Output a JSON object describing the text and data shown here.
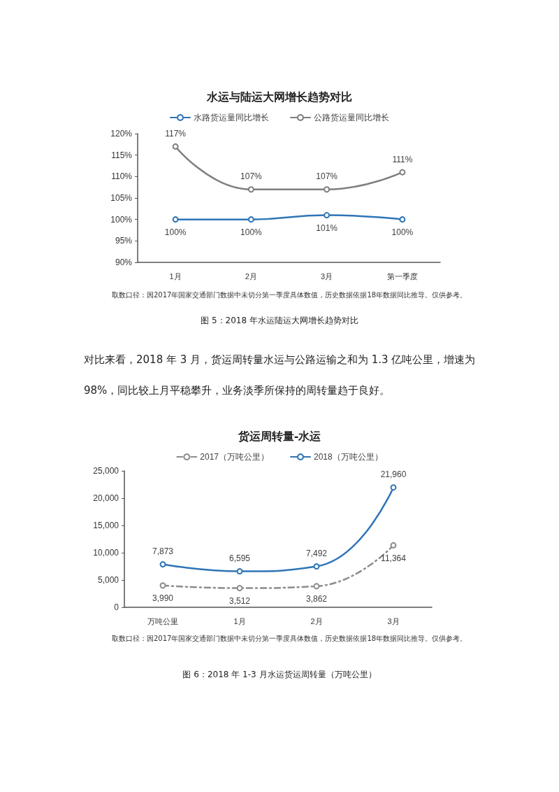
{
  "chart_data": [
    {
      "type": "line",
      "title": "水运与陆运大网增长趋势对比",
      "categories": [
        "1月",
        "2月",
        "3月",
        "第一季度"
      ],
      "series": [
        {
          "name": "水路货运量同比增长",
          "color": "#2e75b6",
          "values": [
            100,
            100,
            101,
            100
          ],
          "value_labels": [
            "100%",
            "100%",
            "101%",
            "100%"
          ]
        },
        {
          "name": "公路货运量同比增长",
          "color": "#7f7f7f",
          "values": [
            117,
            107,
            107,
            111
          ],
          "value_labels": [
            "117%",
            "107%",
            "107%",
            "111%"
          ]
        }
      ],
      "ylim": [
        90,
        120
      ],
      "yticks": [
        {
          "value": 90,
          "label": "90%"
        },
        {
          "value": 95,
          "label": "95%"
        },
        {
          "value": 100,
          "label": "100%"
        },
        {
          "value": 105,
          "label": "105%"
        },
        {
          "value": 110,
          "label": "110%"
        },
        {
          "value": 115,
          "label": "115%"
        },
        {
          "value": 120,
          "label": "120%"
        }
      ],
      "grid": false,
      "legend": "top",
      "marker": "circle",
      "line_style": "solid",
      "annotations": [
        "取数口径：因2017年国家交通部门数据中未切分第一季度具体数值，历史数据依据18年数据同比推导。仅供参考。",
        "图 5：2018 年水运陆运大网增长趋势对比",
        "对比来看，2018 年 3 月，货运周转量水运与公路运输之和为 1.3 亿吨公里，增速为 98%，同比较上月平稳攀升，业务淡季所保持的周转量趋于良好。"
      ]
    },
    {
      "type": "line",
      "title": "货运周转量-水运",
      "categories": [
        "万吨公里",
        "1月",
        "2月",
        "3月"
      ],
      "series": [
        {
          "name": "2017（万吨公里）",
          "color": "#8c8c8c",
          "line_style": "dashed",
          "values": [
            3990,
            3512,
            3862,
            11364
          ],
          "value_labels": [
            "3,990",
            "3,512",
            "3,862",
            "11,364"
          ]
        },
        {
          "name": "2018（万吨公里）",
          "color": "#2e75b6",
          "line_style": "solid",
          "values": [
            7873,
            6595,
            7492,
            21960
          ],
          "value_labels": [
            "7,873",
            "6,595",
            "7,492",
            "21,960"
          ]
        }
      ],
      "ylim": [
        0,
        25000
      ],
      "yticks": [
        0,
        {
          "value": 5000,
          "label": "5,000"
        },
        {
          "value": 10000,
          "label": "10,000"
        },
        {
          "value": 15000,
          "label": "15,000"
        },
        {
          "value": 20000,
          "label": "20,000"
        },
        {
          "value": 25000,
          "label": "25,000"
        }
      ],
      "grid": false,
      "legend": "top",
      "marker": "circle",
      "annotations": [
        "取数口径：因2017年国家交通部门数据中未切分第一季度具体数值，历史数据依据18年数据同比推导。仅供参考。",
        "图 6：2018 年 1-3 月水运货运周转量（万吨公里）"
      ]
    }
  ]
}
